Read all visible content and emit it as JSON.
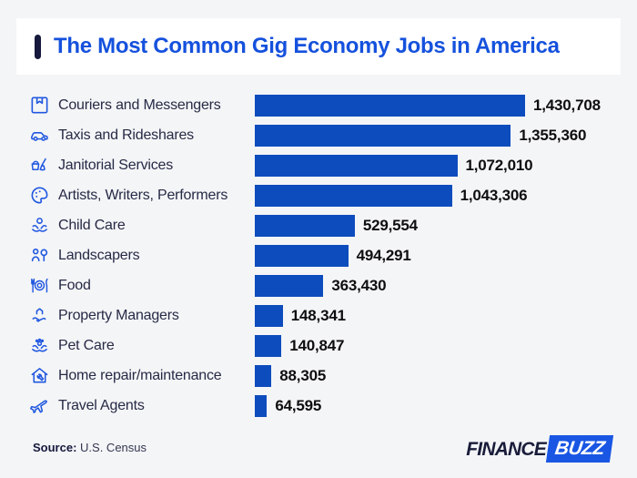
{
  "page": {
    "title": "The Most Common Gig Economy Jobs in America",
    "source_label": "Source:",
    "source_value": "U.S. Census",
    "logo": {
      "part1": "FINANCE",
      "part2": "BUZZ"
    }
  },
  "colors": {
    "page_background": "#f4f5f7",
    "header_background": "#ffffff",
    "title_blue": "#1551dd",
    "accent_navy": "#16193c",
    "bar_blue": "#0d4cbd",
    "icon_blue": "#2158e0",
    "label_navy": "#262a45",
    "value_black": "#0e0e0e",
    "logo_box_blue": "#1956e3"
  },
  "chart_data": {
    "type": "bar",
    "orientation": "horizontal",
    "title": "The Most Common Gig Economy Jobs in America",
    "source": "U.S. Census",
    "value_axis_max": 1430708,
    "grid": false,
    "legend": false,
    "categories": [
      "Couriers and Messengers",
      "Taxis and Rideshares",
      "Janitorial Services",
      "Artists, Writers, Performers",
      "Child Care",
      "Landscapers",
      "Food",
      "Property Managers",
      "Pet Care",
      "Home repair/maintenance",
      "Travel Agents"
    ],
    "values": [
      1430708,
      1355360,
      1072010,
      1043306,
      529554,
      494291,
      363430,
      148341,
      140847,
      88305,
      64595
    ],
    "rows": [
      {
        "label": "Couriers and Messengers",
        "value": 1430708,
        "value_label": "1,430,708",
        "icon": "package-icon"
      },
      {
        "label": "Taxis and Rideshares",
        "value": 1355360,
        "value_label": "1,355,360",
        "icon": "car-icon"
      },
      {
        "label": "Janitorial Services",
        "value": 1072010,
        "value_label": "1,072,010",
        "icon": "cleaning-icon"
      },
      {
        "label": "Artists, Writers, Performers",
        "value": 1043306,
        "value_label": "1,043,306",
        "icon": "palette-icon"
      },
      {
        "label": "Child Care",
        "value": 529554,
        "value_label": "529,554",
        "icon": "child-care-icon"
      },
      {
        "label": "Landscapers",
        "value": 494291,
        "value_label": "494,291",
        "icon": "landscaper-icon"
      },
      {
        "label": "Food",
        "value": 363430,
        "value_label": "363,430",
        "icon": "food-icon"
      },
      {
        "label": "Property Managers",
        "value": 148341,
        "value_label": "148,341",
        "icon": "house-hand-icon"
      },
      {
        "label": "Pet Care",
        "value": 140847,
        "value_label": "140,847",
        "icon": "paw-hands-icon"
      },
      {
        "label": "Home repair/maintenance",
        "value": 88305,
        "value_label": "88,305",
        "icon": "home-wrench-icon"
      },
      {
        "label": "Travel Agents",
        "value": 64595,
        "value_label": "64,595",
        "icon": "plane-icon"
      }
    ]
  }
}
